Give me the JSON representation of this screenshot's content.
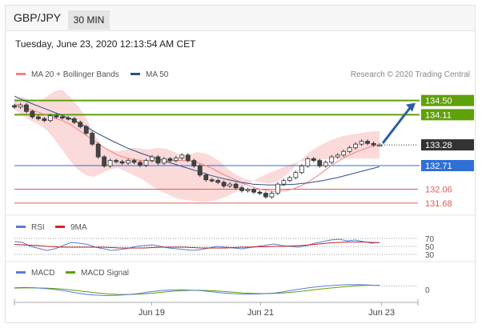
{
  "header": {
    "symbol": "GBP/JPY",
    "timeframe": "30 MIN"
  },
  "date_line": "Tuesday, June 23, 2020 12:13:54 AM CET",
  "copyright": "Research © 2020 Trading Central",
  "colors": {
    "resistance": "#5fa10a",
    "pivot": "#2f6fd6",
    "support": "#e05a5a",
    "current": "#333333",
    "arrow": "#2f5ea8",
    "band_fill": "#fbd6d6",
    "ma20": "#f08080",
    "ma50": "#2c4f8a"
  },
  "chart_data": [
    {
      "panel": "price",
      "type": "line",
      "legend": [
        {
          "label": "MA 20 + Bollinger Bands",
          "color": "#f08080"
        },
        {
          "label": "MA 50",
          "color": "#2c4f8a"
        }
      ],
      "levels": [
        {
          "name": "resistance-2",
          "value": 134.5,
          "label": "134.50",
          "kind": "resistance"
        },
        {
          "name": "resistance-1",
          "value": 134.11,
          "label": "134.11",
          "kind": "resistance"
        },
        {
          "name": "current-price",
          "value": 133.28,
          "label": "133.28",
          "kind": "current"
        },
        {
          "name": "pivot",
          "value": 132.71,
          "label": "132.71",
          "kind": "pivot"
        },
        {
          "name": "support-1",
          "value": 132.06,
          "label": "132.06",
          "kind": "support"
        },
        {
          "name": "support-2",
          "value": 131.68,
          "label": "131.68",
          "kind": "support"
        }
      ],
      "close_series": [
        134.32,
        134.38,
        134.2,
        134.05,
        134.0,
        133.95,
        134.08,
        134.05,
        134.02,
        134.0,
        133.9,
        133.78,
        133.6,
        133.3,
        132.95,
        132.7,
        132.85,
        132.82,
        132.78,
        132.85,
        132.8,
        132.72,
        132.85,
        132.95,
        132.78,
        132.9,
        132.85,
        132.92,
        133.0,
        132.85,
        132.7,
        132.45,
        132.32,
        132.3,
        132.25,
        132.15,
        132.2,
        132.1,
        132.02,
        132.05,
        131.98,
        131.95,
        131.85,
        131.95,
        132.2,
        132.3,
        132.38,
        132.52,
        132.7,
        132.9,
        132.85,
        132.7,
        132.8,
        132.95,
        133.0,
        133.1,
        133.2,
        133.3,
        133.38,
        133.32,
        133.28,
        133.28
      ],
      "ma20": [
        134.4,
        134.35,
        134.25,
        134.18,
        134.1,
        134.02,
        133.95,
        133.85,
        133.7,
        133.55,
        133.4,
        133.25,
        133.12,
        133.0,
        132.92,
        132.88,
        132.85,
        132.84,
        132.82,
        132.83,
        132.84,
        132.85,
        132.84,
        132.8,
        132.72,
        132.62,
        132.5,
        132.4,
        132.3,
        132.2,
        132.12,
        132.06,
        132.02,
        132.0,
        132.02,
        132.06,
        132.14,
        132.26,
        132.4,
        132.56,
        132.72,
        132.86,
        132.98,
        133.08,
        133.16,
        133.24,
        133.28
      ],
      "bb_upper": [
        134.55,
        134.6,
        134.5,
        134.45,
        134.6,
        134.75,
        134.8,
        134.6,
        134.35,
        134.05,
        133.6,
        133.25,
        133.15,
        133.1,
        133.15,
        133.2,
        133.18,
        133.15,
        133.2,
        133.18,
        133.1,
        133.0,
        133.0,
        133.08,
        133.05,
        132.95,
        132.8,
        132.6,
        132.45,
        132.35,
        132.3,
        132.25,
        132.22,
        132.25,
        132.4,
        132.6,
        132.85,
        133.05,
        133.2,
        133.32,
        133.42,
        133.5,
        133.55,
        133.58,
        133.62,
        133.65,
        133.66
      ],
      "bb_lower": [
        134.25,
        134.1,
        133.95,
        133.85,
        133.7,
        133.45,
        133.15,
        132.85,
        132.6,
        132.45,
        132.4,
        132.5,
        132.6,
        132.65,
        132.55,
        132.45,
        132.35,
        132.2,
        132.05,
        131.95,
        131.85,
        131.78,
        131.75,
        131.73,
        131.72,
        131.74,
        131.8,
        131.88,
        132.0,
        132.15,
        132.28,
        132.4,
        132.5,
        132.58,
        132.68,
        132.76,
        132.82,
        132.85,
        132.86,
        132.88,
        132.9,
        132.9,
        132.9,
        132.9,
        132.9,
        132.9,
        132.9
      ],
      "ma50": [
        134.62,
        134.45,
        134.3,
        134.15,
        134.0,
        133.8,
        133.58,
        133.38,
        133.2,
        133.05,
        132.92,
        132.8,
        132.68,
        132.56,
        132.44,
        132.34,
        132.26,
        132.2,
        132.18,
        132.18,
        132.2,
        132.24,
        132.3,
        132.38,
        132.48,
        132.58,
        132.68
      ],
      "forecast_arrow": {
        "from": 133.28,
        "to": 134.5
      }
    },
    {
      "panel": "rsi",
      "type": "line",
      "legend": [
        {
          "label": "RSI",
          "color": "#5b7bd5"
        },
        {
          "label": "9MA",
          "color": "#e02020"
        }
      ],
      "levels": [
        {
          "label": "70",
          "value": 70
        },
        {
          "label": "50",
          "value": 50
        },
        {
          "label": "30",
          "value": 30
        }
      ],
      "ylim": [
        20,
        80
      ],
      "rsi": [
        62,
        60,
        50,
        45,
        40,
        44,
        52,
        60,
        58,
        55,
        48,
        44,
        40,
        42,
        45,
        50,
        52,
        54,
        50,
        46,
        44,
        42,
        40,
        42,
        46,
        50,
        48,
        46,
        44,
        47,
        50,
        53,
        56,
        52,
        50,
        48,
        52,
        58,
        62,
        66,
        68,
        64,
        66,
        62,
        58,
        60
      ],
      "ma9": [
        55,
        54,
        53,
        52,
        50,
        49,
        48,
        48,
        48,
        48,
        48,
        48,
        47,
        46,
        46,
        46,
        46,
        47,
        48,
        48,
        48,
        48,
        47,
        46,
        46,
        46,
        46,
        47,
        48,
        48,
        49,
        49,
        50,
        50,
        51,
        52,
        53,
        55,
        57,
        59,
        60,
        61,
        61,
        61,
        60,
        59
      ]
    },
    {
      "panel": "macd",
      "type": "line",
      "legend": [
        {
          "label": "MACD",
          "color": "#5b7bd5"
        },
        {
          "label": "MACD Signal",
          "color": "#5fa10a"
        }
      ],
      "zero_label": "0",
      "ylim": [
        -0.6,
        0.6
      ],
      "macd": [
        0.1,
        0.12,
        0.1,
        0.05,
        0.0,
        -0.08,
        -0.18,
        -0.26,
        -0.3,
        -0.32,
        -0.3,
        -0.26,
        -0.2,
        -0.12,
        -0.05,
        -0.02,
        -0.01,
        -0.03,
        -0.06,
        -0.12,
        -0.18,
        -0.22,
        -0.24,
        -0.24,
        -0.22,
        -0.18,
        -0.1,
        0.0,
        0.08,
        0.15,
        0.2,
        0.24,
        0.26,
        0.27,
        0.25,
        0.22
      ],
      "signal": [
        0.08,
        0.09,
        0.09,
        0.08,
        0.05,
        0.01,
        -0.05,
        -0.12,
        -0.18,
        -0.23,
        -0.26,
        -0.26,
        -0.24,
        -0.2,
        -0.15,
        -0.1,
        -0.06,
        -0.04,
        -0.04,
        -0.06,
        -0.1,
        -0.14,
        -0.18,
        -0.2,
        -0.21,
        -0.2,
        -0.17,
        -0.12,
        -0.06,
        0.01,
        0.07,
        0.12,
        0.17,
        0.21,
        0.23,
        0.23
      ]
    }
  ],
  "x_axis": {
    "ticks": [
      {
        "label": "Jun 19",
        "pos": 0.34
      },
      {
        "label": "Jun 21",
        "pos": 0.61
      },
      {
        "label": "Jun 23",
        "pos": 0.91
      }
    ]
  }
}
